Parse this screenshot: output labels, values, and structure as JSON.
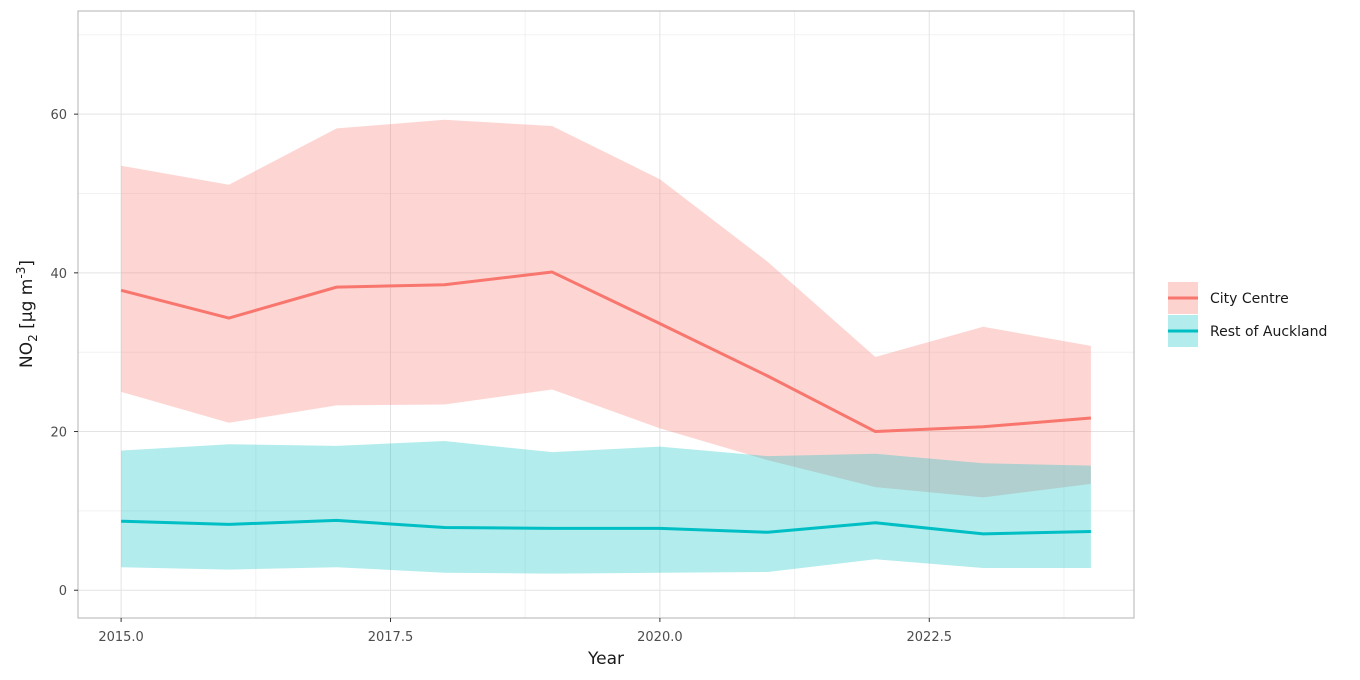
{
  "chart_data": {
    "type": "line",
    "xlabel": "Year",
    "ylabel": {
      "base": "NO",
      "sub": "2",
      "unit_open": " [µg m",
      "sup": "-3",
      "unit_close": "]"
    },
    "xlim": [
      2014.6,
      2024.4
    ],
    "ylim": [
      -3.5,
      73
    ],
    "grid": true,
    "legend_position": "right",
    "x_ticks": [
      {
        "value": 2015.0,
        "label": "2015.0"
      },
      {
        "value": 2017.5,
        "label": "2017.5"
      },
      {
        "value": 2020.0,
        "label": "2020.0"
      },
      {
        "value": 2022.5,
        "label": "2022.5"
      }
    ],
    "x_minor": [
      2016.25,
      2018.75,
      2021.25,
      2023.75
    ],
    "y_ticks": [
      {
        "value": 0,
        "label": "0"
      },
      {
        "value": 20,
        "label": "20"
      },
      {
        "value": 40,
        "label": "40"
      },
      {
        "value": 60,
        "label": "60"
      }
    ],
    "y_minor": [
      10,
      30,
      50,
      70
    ],
    "x": [
      2015,
      2016,
      2017,
      2018,
      2019,
      2020,
      2021,
      2022,
      2023,
      2024
    ],
    "series": [
      {
        "name": "City Centre",
        "color": "#F8766D",
        "values": [
          37.8,
          34.3,
          38.2,
          38.5,
          40.1,
          33.6,
          27.0,
          20.0,
          20.6,
          21.7
        ],
        "lower": [
          25.0,
          21.1,
          23.3,
          23.4,
          25.3,
          20.4,
          16.4,
          13.0,
          11.7,
          13.4
        ],
        "upper": [
          53.5,
          51.1,
          58.2,
          59.3,
          58.5,
          51.8,
          41.4,
          29.4,
          33.2,
          30.8
        ]
      },
      {
        "name": "Rest of Auckland",
        "color": "#00BFC4",
        "values": [
          8.7,
          8.3,
          8.8,
          7.9,
          7.8,
          7.8,
          7.3,
          8.5,
          7.1,
          7.4
        ],
        "lower": [
          2.9,
          2.6,
          2.9,
          2.2,
          2.1,
          2.2,
          2.3,
          3.9,
          2.8,
          2.8
        ],
        "upper": [
          17.6,
          18.4,
          18.2,
          18.8,
          17.4,
          18.1,
          16.9,
          17.2,
          16.0,
          15.7
        ]
      }
    ]
  }
}
